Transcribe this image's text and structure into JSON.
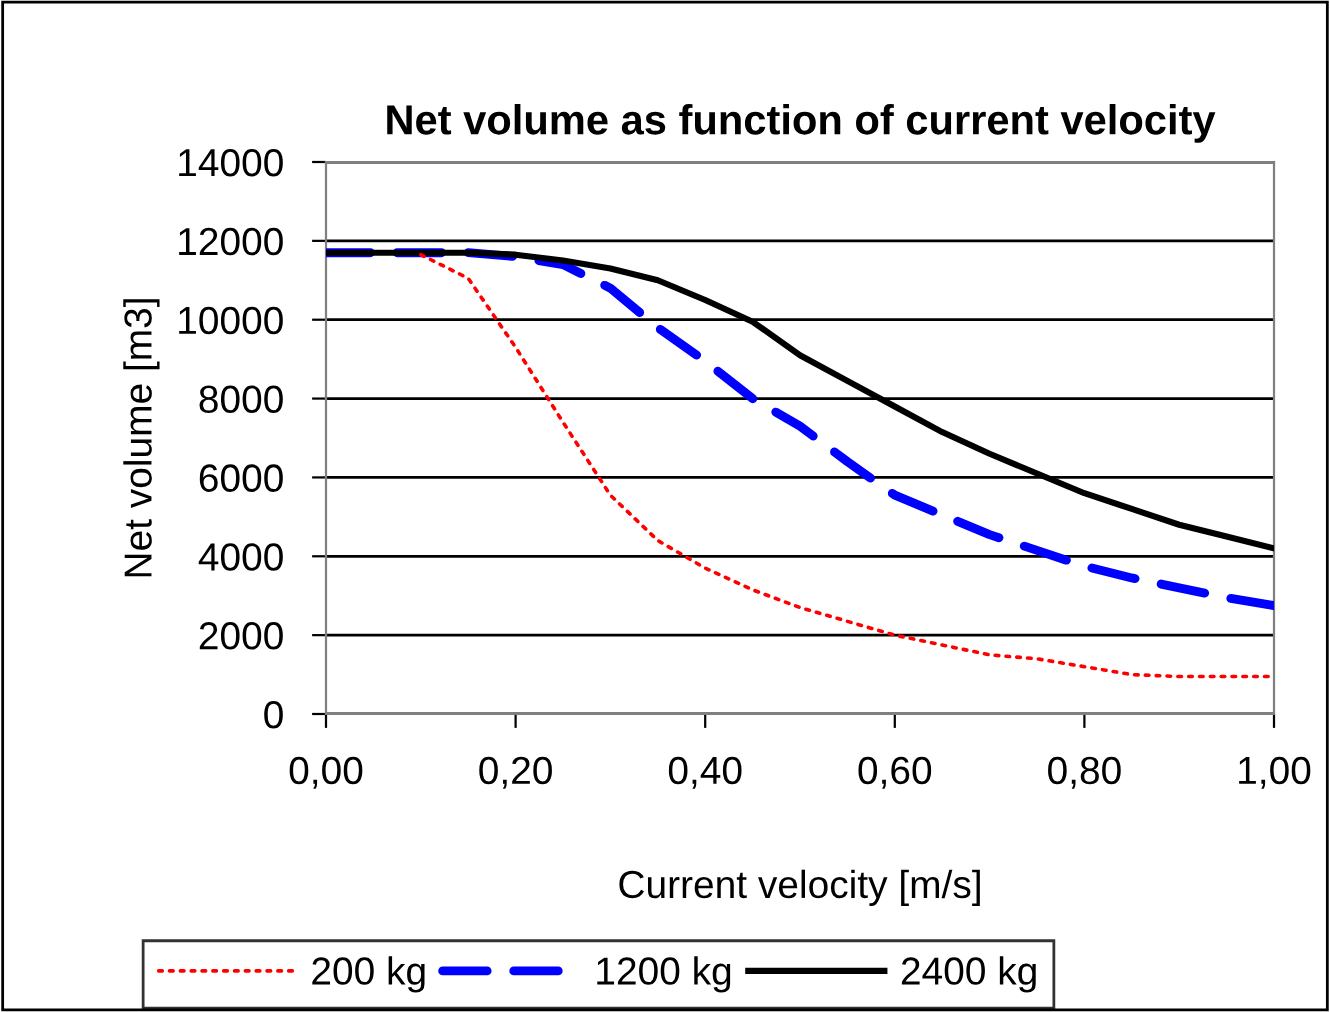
{
  "chart_data": {
    "type": "line",
    "title": "Net volume as function of current velocity",
    "xlabel": "Current velocity [m/s]",
    "ylabel": "Net volume [m3]",
    "x": [
      0,
      0.05,
      0.1,
      0.15,
      0.2,
      0.25,
      0.3,
      0.35,
      0.4,
      0.45,
      0.5,
      0.55,
      0.6,
      0.65,
      0.7,
      0.75,
      0.8,
      0.85,
      0.9,
      0.95,
      1.0
    ],
    "series": [
      {
        "name": "200 kg",
        "color": "#ff0000",
        "line_style": "dotted",
        "values": [
          null,
          null,
          11650,
          11050,
          9300,
          7400,
          5550,
          4400,
          3700,
          3150,
          2700,
          2350,
          2000,
          1750,
          1500,
          1400,
          1200,
          1000,
          950,
          950,
          950
        ]
      },
      {
        "name": "1200 kg",
        "color": "#0000ff",
        "line_style": "dashed",
        "values": [
          11700,
          11700,
          11700,
          11700,
          11600,
          11400,
          10800,
          9800,
          8950,
          8000,
          7300,
          6400,
          5550,
          5050,
          4550,
          4150,
          3750,
          3450,
          3200,
          2950,
          2750
        ]
      },
      {
        "name": "2400 kg",
        "color": "#000000",
        "line_style": "solid",
        "values": [
          11700,
          11700,
          11700,
          11700,
          11650,
          11500,
          11300,
          11000,
          10500,
          9950,
          9100,
          8450,
          7800,
          7150,
          6600,
          6100,
          5600,
          5200,
          4800,
          4500,
          4200
        ]
      }
    ],
    "xlim": [
      0,
      1.0
    ],
    "xticks": [
      {
        "value": 0,
        "label": "0,00"
      },
      {
        "value": 0.2,
        "label": "0,20"
      },
      {
        "value": 0.4,
        "label": "0,40"
      },
      {
        "value": 0.6,
        "label": "0,60"
      },
      {
        "value": 0.8,
        "label": "0,80"
      },
      {
        "value": 1.0,
        "label": "1,00"
      }
    ],
    "ylim": [
      0,
      14000
    ],
    "yticks": [
      0,
      2000,
      4000,
      6000,
      8000,
      10000,
      12000,
      14000
    ],
    "grid": "y",
    "legend": "bottom"
  }
}
